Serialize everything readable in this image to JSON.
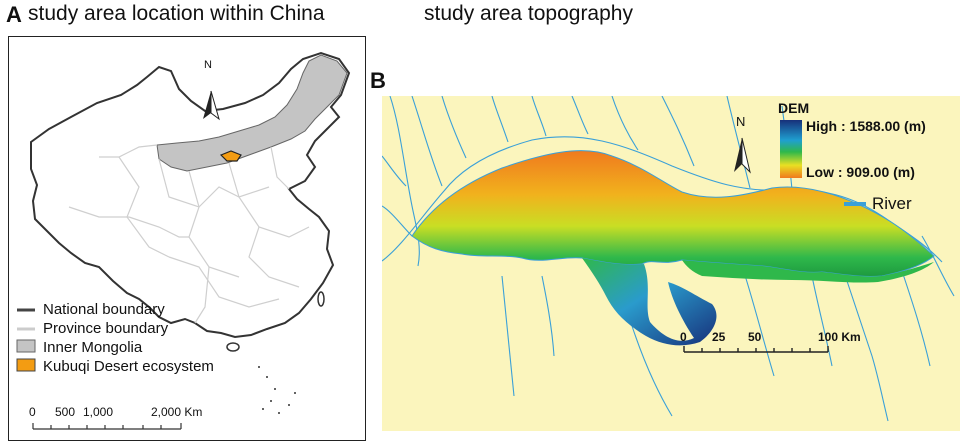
{
  "panel_a": {
    "letter": "A",
    "caption": "study area location within China",
    "north_label": "N",
    "legend": [
      {
        "label": "National boundary",
        "color": "#444444"
      },
      {
        "label": "Province boundary",
        "color": "#cccccc"
      },
      {
        "label": "Inner Mongolia",
        "color": "#c4c4c4"
      },
      {
        "label": "Kubuqi Desert ecosystem",
        "color": "#f39c12"
      }
    ],
    "scale": {
      "labels": [
        "0",
        "500",
        "1,000",
        "2,000 Km"
      ]
    }
  },
  "panel_b": {
    "letter": "B",
    "caption": "study area topography",
    "north_label": "N",
    "dem_title": "DEM",
    "dem_high": "High : 1588.00 (m)",
    "dem_low": "Low : 909.00 (m)",
    "river_label": "River",
    "scale": {
      "labels": [
        "0",
        "25",
        "50",
        "100 Km"
      ]
    },
    "colors": {
      "background": "#fbf5bd",
      "river": "#3aa0d8",
      "high": "#17307a",
      "mid": "#2fb84b",
      "low": "#f07a1e"
    }
  }
}
